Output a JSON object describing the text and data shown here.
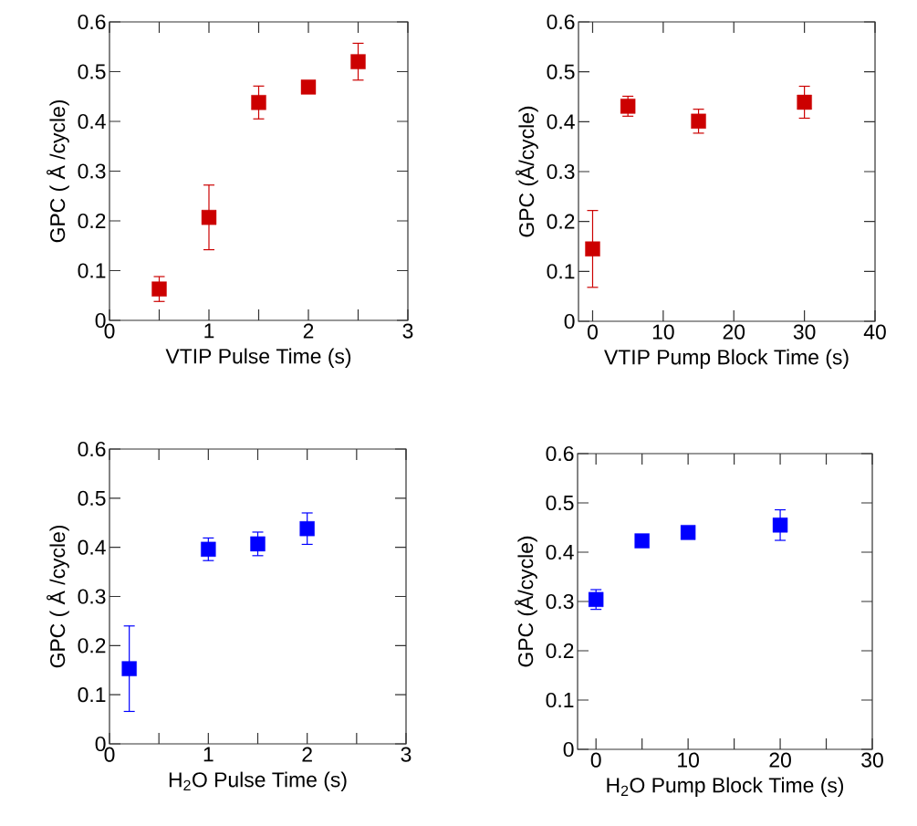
{
  "chart_data": [
    {
      "type": "scatter",
      "xlabel": "VTIP Pulse Time (s)",
      "ylabel": "GPC ( Å /cycle)",
      "marker": "square",
      "color": "#cc0000",
      "x": [
        0.5,
        1,
        1.5,
        2,
        2.5
      ],
      "values": [
        0.063,
        0.207,
        0.438,
        0.469,
        0.52
      ],
      "errors": [
        0.025,
        0.065,
        0.033,
        null,
        0.037
      ],
      "xlim": [
        0,
        3
      ],
      "xticks": [
        0,
        {
          "value": 0.5,
          "label": null
        },
        1,
        {
          "value": 1.5,
          "label": null
        },
        2,
        {
          "value": 2.5,
          "label": null
        },
        3
      ],
      "ylim": [
        0,
        0.6
      ],
      "yticks": [
        0,
        0.1,
        0.2,
        0.3,
        0.4,
        0.5,
        0.6
      ]
    },
    {
      "type": "scatter",
      "xlabel": "VTIP Pump Block Time (s)",
      "ylabel": "GPC (Å/cycle)",
      "marker": "square",
      "color": "#cc0000",
      "x": [
        0,
        5,
        15,
        30
      ],
      "values": [
        0.145,
        0.431,
        0.401,
        0.439
      ],
      "errors": [
        0.077,
        0.02,
        0.024,
        0.032
      ],
      "xlim": [
        -2,
        40
      ],
      "xticks": [
        0,
        10,
        20,
        30,
        40
      ],
      "ylim": [
        0,
        0.6
      ],
      "yticks": [
        0,
        0.1,
        0.2,
        0.3,
        0.4,
        0.5,
        0.6
      ]
    },
    {
      "type": "scatter",
      "xlabel": "H$_{2}$O Pulse Time (s)",
      "ylabel": "GPC ( Å /cycle)",
      "marker": "square",
      "color": "#0000ff",
      "x": [
        0.2,
        1,
        1.5,
        2
      ],
      "values": [
        0.153,
        0.396,
        0.407,
        0.438
      ],
      "errors": [
        0.087,
        0.023,
        0.024,
        0.032
      ],
      "xlim": [
        0,
        3
      ],
      "xticks": [
        0,
        {
          "value": 0.5,
          "label": null
        },
        1,
        {
          "value": 1.5,
          "label": null
        },
        2,
        {
          "value": 2.5,
          "label": null
        },
        3
      ],
      "ylim": [
        0,
        0.6
      ],
      "yticks": [
        0,
        0.1,
        0.2,
        0.3,
        0.4,
        0.5,
        0.6
      ]
    },
    {
      "type": "scatter",
      "xlabel": "H$_{2}$O Pump Block Time (s)",
      "ylabel": "GPC (Å/cycle)",
      "marker": "square",
      "color": "#0000ff",
      "x": [
        0,
        5,
        10,
        20
      ],
      "values": [
        0.304,
        0.423,
        0.44,
        0.455
      ],
      "errors": [
        0.02,
        null,
        null,
        0.031
      ],
      "xlim": [
        -2,
        30
      ],
      "xticks": [
        0,
        {
          "value": 5,
          "label": null
        },
        10,
        {
          "value": 15,
          "label": null
        },
        20,
        {
          "value": 25,
          "label": null
        },
        30
      ],
      "ylim": [
        0,
        0.6
      ],
      "yticks": [
        0,
        0.1,
        0.2,
        0.3,
        0.4,
        0.5,
        0.6
      ]
    }
  ]
}
